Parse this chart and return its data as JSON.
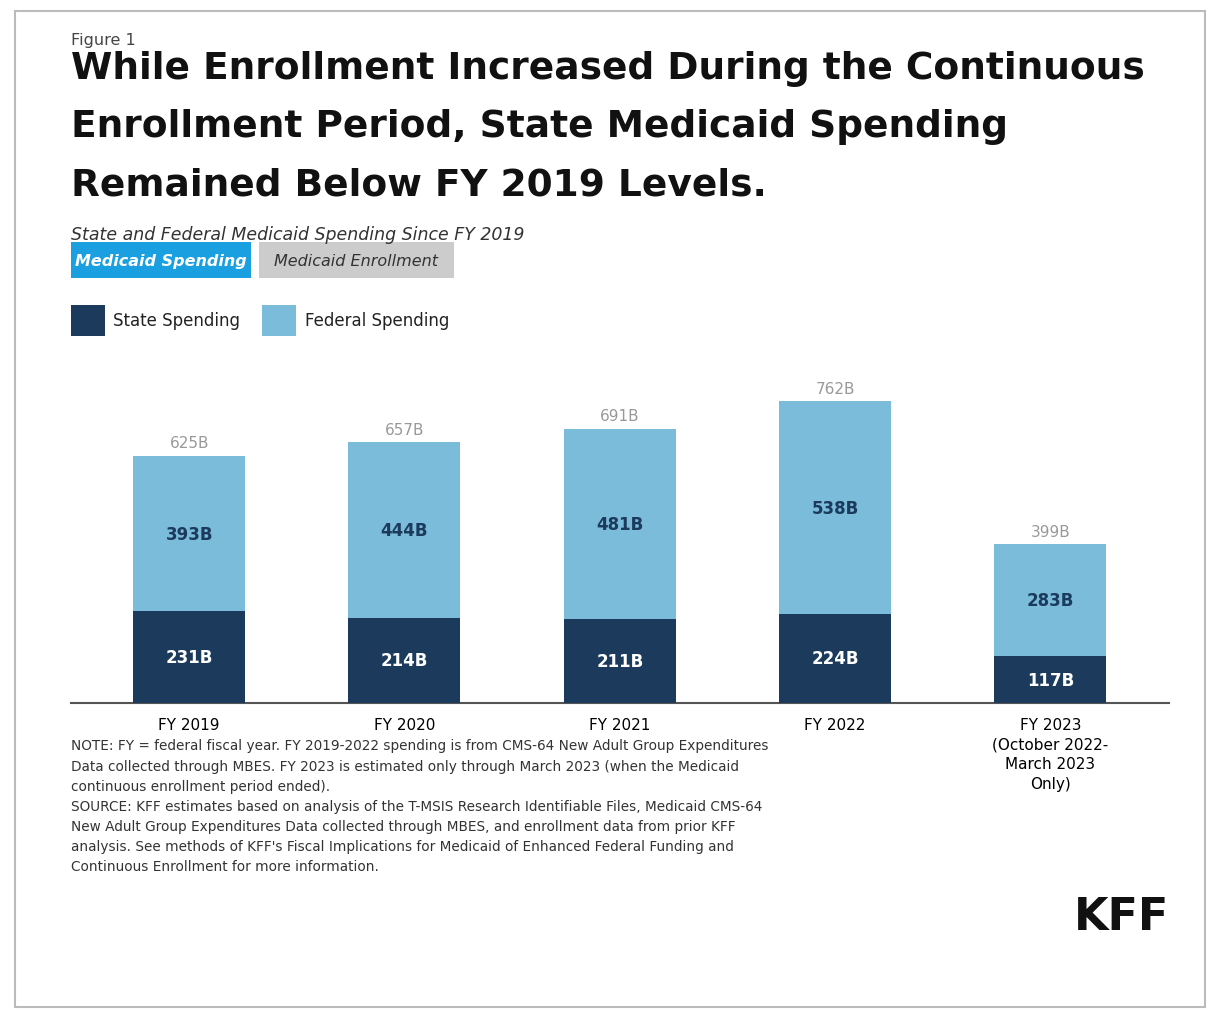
{
  "figure_label": "Figure 1",
  "title_line1": "While Enrollment Increased During the Continuous",
  "title_line2": "Enrollment Period, State Medicaid Spending",
  "title_line3": "Remained Below FY 2019 Levels.",
  "subtitle": "State and Federal Medicaid Spending Since FY 2019",
  "tab_active": "Medicaid Spending",
  "tab_inactive": "Medicaid Enrollment",
  "legend_state": "State Spending",
  "legend_federal": "Federal Spending",
  "categories": [
    "FY 2019",
    "FY 2020",
    "FY 2021",
    "FY 2022",
    "FY 2023\n(October 2022-\nMarch 2023\nOnly)"
  ],
  "state_values": [
    231,
    214,
    211,
    224,
    117
  ],
  "federal_values": [
    393,
    444,
    481,
    538,
    283
  ],
  "total_labels": [
    "625B",
    "657B",
    "691B",
    "762B",
    "399B"
  ],
  "state_labels": [
    "231B",
    "214B",
    "211B",
    "224B",
    "117B"
  ],
  "federal_labels": [
    "393B",
    "444B",
    "481B",
    "538B",
    "283B"
  ],
  "color_state": "#1b3a5c",
  "color_federal": "#7bbcda",
  "color_tab_active_bg": "#1a9fe0",
  "color_tab_active_text": "#ffffff",
  "color_tab_inactive_bg": "#cccccc",
  "color_tab_inactive_text": "#333333",
  "color_total_label": "#999999",
  "color_bar_label_light": "#ffffff",
  "color_bar_label_dark": "#1b3a5c",
  "note_line1": "NOTE: FY = federal fiscal year. FY 2019-2022 spending is from CMS-64 New Adult Group Expenditures",
  "note_line2": "Data collected through MBES. FY 2023 is estimated only through March 2023 (when the Medicaid",
  "note_line3": "continuous enrollment period ended).",
  "note_line4": "SOURCE: KFF estimates based on analysis of the T-MSIS Research Identifiable Files, Medicaid CMS-64",
  "note_line5": "New Adult Group Expenditures Data collected through MBES, and enrollment data from prior KFF",
  "note_line6": "analysis. See methods of KFF's Fiscal Implications for Medicaid of Enhanced Federal Funding and",
  "note_line7": "Continuous Enrollment for more information.",
  "kff_label": "KFF",
  "background_color": "#ffffff",
  "border_color": "#bbbbbb",
  "ylim_max": 850
}
